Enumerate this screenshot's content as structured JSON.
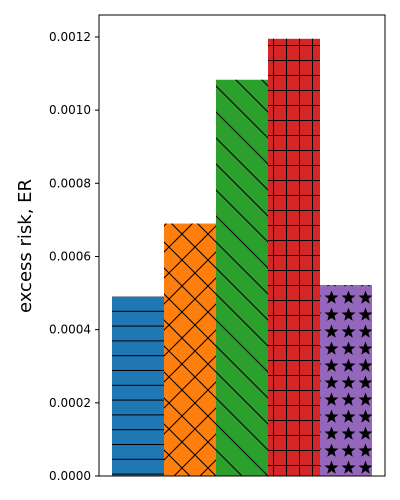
{
  "chart_data": {
    "type": "bar",
    "title": "",
    "xlabel": "",
    "ylabel": "excess risk, ER",
    "ylim": [
      0,
      0.00126
    ],
    "yticks": [
      "0.0000",
      "0.0002",
      "0.0004",
      "0.0006",
      "0.0008",
      "0.0010",
      "0.0012"
    ],
    "grid": false,
    "legend": "none",
    "categories": [
      "",
      "",
      "",
      "",
      ""
    ],
    "values": [
      0.00049,
      0.00069,
      0.001083,
      0.001195,
      0.000522
    ],
    "colors": [
      "#1f77b4",
      "#ff7f0e",
      "#2ca02c",
      "#d62728",
      "#9467bd"
    ],
    "hatches": [
      "horizontal",
      "crosshatch",
      "diagonal",
      "grid",
      "stars"
    ]
  }
}
